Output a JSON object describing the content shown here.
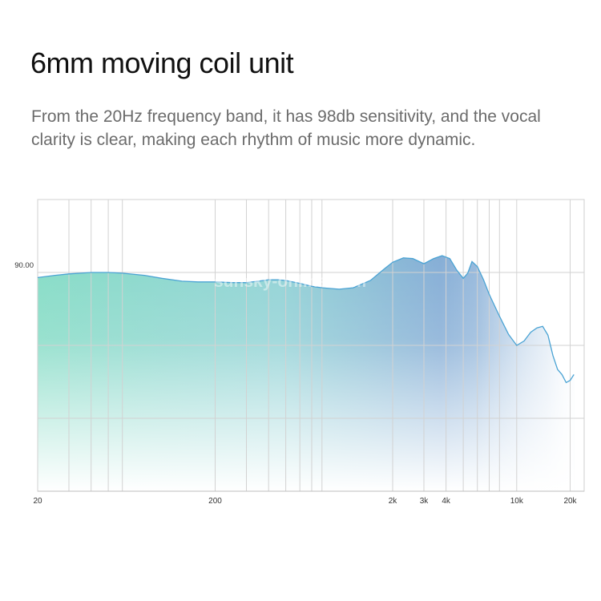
{
  "header": {
    "title": "6mm moving coil unit",
    "subtitle": "From the 20Hz frequency band, it has 98db sensitivity, and the vocal clarity is clear, making each rhythm of music more dynamic."
  },
  "watermark": "sunsky-online.com",
  "chart_data": {
    "type": "area",
    "title": "",
    "xlabel": "",
    "ylabel": "",
    "x_scale": "log",
    "xlim": [
      20,
      24000
    ],
    "ylim": [
      60,
      100
    ],
    "grid": true,
    "x_ticks": [
      {
        "value": 20,
        "label": "20"
      },
      {
        "value": 200,
        "label": "200"
      },
      {
        "value": 2000,
        "label": "2k"
      },
      {
        "value": 3000,
        "label": "3k"
      },
      {
        "value": 4000,
        "label": "4k"
      },
      {
        "value": 10000,
        "label": "10k"
      },
      {
        "value": 20000,
        "label": "20k"
      }
    ],
    "x_gridlines": [
      20,
      30,
      40,
      50,
      60,
      200,
      300,
      400,
      500,
      600,
      700,
      800,
      2000,
      3000,
      4000,
      5000,
      6000,
      7000,
      8000,
      10000,
      20000
    ],
    "y_ticks": [
      {
        "value": 90,
        "label": "90.00"
      }
    ],
    "y_gridlines": [
      70,
      80,
      90,
      100
    ],
    "colors": {
      "line": "#4aa3d4",
      "fill_left": "#7fd6c6",
      "fill_right": "#7ea7d2"
    },
    "series": [
      {
        "x": [
          20,
          25,
          30,
          35,
          40,
          50,
          60,
          80,
          100,
          130,
          160,
          200,
          250,
          300,
          350,
          400,
          450,
          500,
          600,
          700,
          800,
          1000,
          1200,
          1500,
          1800,
          2000,
          2300,
          2600,
          3000,
          3400,
          3800,
          4200,
          4600,
          5000,
          5300,
          5600,
          6000,
          6500,
          7000,
          8000,
          9000,
          10000,
          11000,
          12000,
          13000,
          14000,
          15000,
          16000,
          17000,
          18000,
          19000,
          20000,
          21000
        ],
        "y": [
          89.3,
          89.6,
          89.8,
          89.9,
          90.0,
          90.0,
          89.9,
          89.6,
          89.2,
          88.8,
          88.7,
          88.7,
          88.6,
          88.6,
          88.8,
          89.0,
          89.0,
          88.9,
          88.5,
          88.1,
          87.9,
          87.7,
          87.9,
          88.9,
          90.5,
          91.4,
          92.0,
          91.9,
          91.2,
          91.9,
          92.3,
          91.9,
          90.3,
          89.2,
          89.9,
          91.5,
          90.8,
          89.0,
          87.0,
          84.0,
          81.5,
          80.0,
          80.6,
          81.8,
          82.4,
          82.6,
          81.4,
          78.6,
          76.7,
          76.0,
          74.9,
          75.2,
          76.0
        ]
      }
    ]
  }
}
